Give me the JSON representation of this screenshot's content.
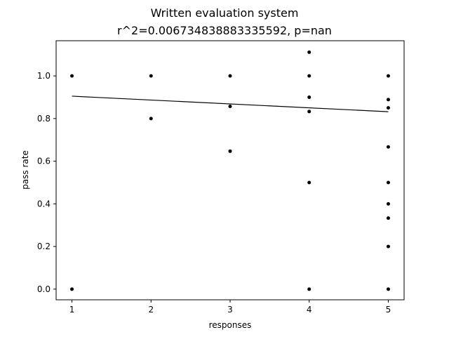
{
  "chart_data": {
    "type": "scatter",
    "title": "Written evaluation system",
    "subtitle": "r^2=0.006734838883335592, p=nan",
    "xlabel": "responses",
    "ylabel": "pass rate",
    "xlim": [
      0.8,
      5.2
    ],
    "ylim": [
      -0.05,
      1.165
    ],
    "xticks": [
      1,
      2,
      3,
      4,
      5
    ],
    "yticks": [
      0.0,
      0.2,
      0.4,
      0.6,
      0.8,
      1.0
    ],
    "grid": false,
    "points": [
      {
        "x": 1,
        "y": 1.0
      },
      {
        "x": 1,
        "y": 0.0
      },
      {
        "x": 2,
        "y": 1.0
      },
      {
        "x": 2,
        "y": 0.8
      },
      {
        "x": 3,
        "y": 1.0
      },
      {
        "x": 3,
        "y": 0.857
      },
      {
        "x": 3,
        "y": 0.647
      },
      {
        "x": 4,
        "y": 1.111
      },
      {
        "x": 4,
        "y": 1.0
      },
      {
        "x": 4,
        "y": 0.9
      },
      {
        "x": 4,
        "y": 0.833
      },
      {
        "x": 4,
        "y": 0.5
      },
      {
        "x": 4,
        "y": 0.0
      },
      {
        "x": 5,
        "y": 1.0
      },
      {
        "x": 5,
        "y": 0.889
      },
      {
        "x": 5,
        "y": 0.85
      },
      {
        "x": 5,
        "y": 0.667
      },
      {
        "x": 5,
        "y": 0.5
      },
      {
        "x": 5,
        "y": 0.4
      },
      {
        "x": 5,
        "y": 0.333
      },
      {
        "x": 5,
        "y": 0.2
      },
      {
        "x": 5,
        "y": 0.0
      }
    ],
    "fit_line": {
      "x": [
        1,
        5
      ],
      "y": [
        0.905,
        0.832
      ]
    },
    "colors": {
      "points": "#000000",
      "line": "#000000"
    }
  }
}
